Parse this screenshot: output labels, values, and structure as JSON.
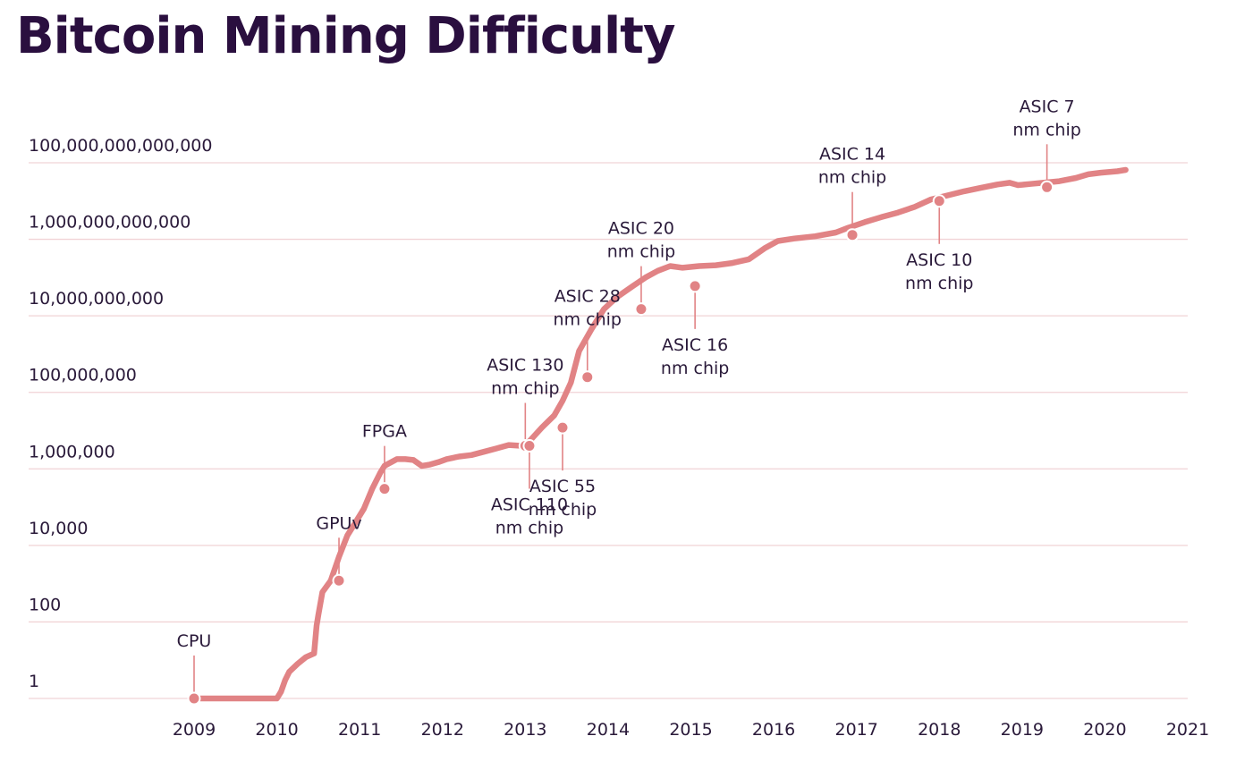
{
  "chart_data": {
    "type": "line",
    "title": "Bitcoin Mining Difficulty",
    "xlabel": "",
    "ylabel": "",
    "y_scale": "log",
    "grid": true,
    "legend": "none",
    "colors": {
      "line": "#e18385",
      "grid": "#f1d3d6",
      "title": "#2a0f3f",
      "text": "#2a1a3a"
    },
    "x_ticks": [
      2009,
      2010,
      2011,
      2012,
      2013,
      2014,
      2015,
      2016,
      2017,
      2018,
      2019,
      2020,
      2021
    ],
    "y_ticks": [
      {
        "value": 1,
        "label": "1"
      },
      {
        "value": 100,
        "label": "100"
      },
      {
        "value": 10000,
        "label": "10,000"
      },
      {
        "value": 1000000,
        "label": "1,000,000"
      },
      {
        "value": 100000000,
        "label": "100,000,000"
      },
      {
        "value": 10000000000,
        "label": "10,000,000,000"
      },
      {
        "value": 1000000000000,
        "label": "1,000,000,000,000"
      },
      {
        "value": 100000000000000,
        "label": "100,000,000,000,000"
      }
    ],
    "xlim": [
      2009,
      2021
    ],
    "ylim": [
      1,
      100000000000000
    ],
    "series": [
      {
        "name": "",
        "x": [
          2009.0,
          2009.5,
          2009.9,
          2010.0,
          2010.05,
          2010.1,
          2010.15,
          2010.25,
          2010.35,
          2010.45,
          2010.48,
          2010.5,
          2010.55,
          2010.65,
          2010.75,
          2010.85,
          2010.95,
          2011.05,
          2011.15,
          2011.25,
          2011.3,
          2011.45,
          2011.55,
          2011.65,
          2011.75,
          2011.85,
          2011.95,
          2012.05,
          2012.2,
          2012.35,
          2012.5,
          2012.65,
          2012.8,
          2012.95,
          2013.05,
          2013.2,
          2013.35,
          2013.45,
          2013.55,
          2013.65,
          2013.8,
          2013.95,
          2014.1,
          2014.3,
          2014.45,
          2014.6,
          2014.75,
          2014.9,
          2015.1,
          2015.3,
          2015.5,
          2015.7,
          2015.9,
          2016.05,
          2016.25,
          2016.5,
          2016.75,
          2016.9,
          2017.1,
          2017.3,
          2017.5,
          2017.7,
          2017.9,
          2018.1,
          2018.3,
          2018.5,
          2018.7,
          2018.85,
          2018.95,
          2019.1,
          2019.25,
          2019.45,
          2019.65,
          2019.8,
          2019.95,
          2020.15,
          2020.25
        ],
        "y": [
          1,
          1,
          1,
          1,
          1.5,
          3,
          5,
          8,
          12,
          15,
          80,
          150,
          600,
          1200,
          5000,
          18000,
          40000,
          90000,
          300000,
          800000,
          1200000,
          1800000,
          1800000,
          1700000,
          1200000,
          1300000,
          1500000,
          1800000,
          2100000,
          2300000,
          2800000,
          3400000,
          4200000,
          4000000,
          5300000,
          12000000,
          25000000,
          60000000,
          180000000,
          1200000000,
          4500000000,
          15000000000,
          30000000000,
          60000000000,
          100000000000,
          150000000000,
          200000000000,
          180000000000,
          200000000000,
          210000000000,
          240000000000,
          300000000000,
          600000000000,
          900000000000,
          1050000000000,
          1200000000000,
          1500000000000,
          2000000000000,
          2800000000000,
          3800000000000,
          5000000000000,
          7000000000000,
          11000000000000,
          14000000000000,
          18000000000000,
          22000000000000,
          27000000000000,
          30000000000000,
          26000000000000,
          28000000000000,
          30000000000000,
          33000000000000,
          40000000000000,
          50000000000000,
          55000000000000,
          60000000000000,
          65000000000000
        ]
      }
    ],
    "annotations": [
      {
        "lines": [
          "CPU"
        ],
        "x": 2009.0,
        "y": 1,
        "side": "above"
      },
      {
        "lines": [
          "GPUv"
        ],
        "x": 2010.75,
        "y": 1200,
        "side": "above"
      },
      {
        "lines": [
          "FPGA"
        ],
        "x": 2011.3,
        "y": 300000,
        "side": "above"
      },
      {
        "lines": [
          "ASIC 130",
          "nm chip"
        ],
        "x": 2013.0,
        "y": 4000000,
        "side": "above"
      },
      {
        "lines": [
          "ASIC 110",
          "nm chip"
        ],
        "x": 2013.05,
        "y": 4000000,
        "side": "below"
      },
      {
        "lines": [
          "ASIC 55",
          "nm chip"
        ],
        "x": 2013.45,
        "y": 12000000,
        "side": "below"
      },
      {
        "lines": [
          "ASIC 28",
          "nm chip"
        ],
        "x": 2013.75,
        "y": 250000000,
        "side": "above"
      },
      {
        "lines": [
          "ASIC 20",
          "nm chip"
        ],
        "x": 2014.4,
        "y": 15000000000,
        "side": "above"
      },
      {
        "lines": [
          "ASIC 16",
          "nm chip"
        ],
        "x": 2015.05,
        "y": 60000000000,
        "side": "below"
      },
      {
        "lines": [
          "ASIC 14",
          "nm chip"
        ],
        "x": 2016.95,
        "y": 1300000000000,
        "side": "above"
      },
      {
        "lines": [
          "ASIC 10",
          "nm chip"
        ],
        "x": 2018.0,
        "y": 10000000000000,
        "side": "below"
      },
      {
        "lines": [
          "ASIC 7",
          "nm chip"
        ],
        "x": 2019.3,
        "y": 23000000000000,
        "side": "above"
      }
    ]
  }
}
